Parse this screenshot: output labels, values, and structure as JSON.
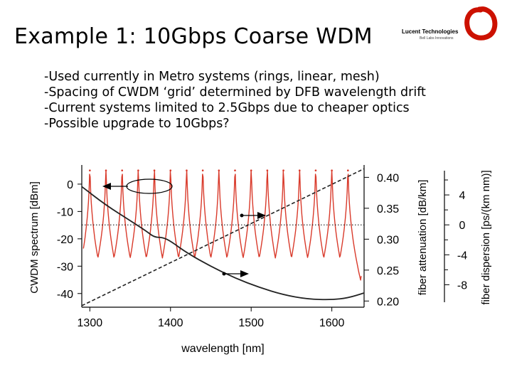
{
  "slide": {
    "title": "Example 1: 10Gbps Coarse WDM",
    "logo_text": "Lucent Technologies",
    "logo_sub": "Bell Labs Innovations"
  },
  "bullets": [
    "-Used currently in Metro systems (rings, linear, mesh)",
    "-Spacing of CWDM ‘grid’ determined by DFB wavelength drift",
    "-Current systems limited to 2.5Gbps due to cheaper optics",
    "-Possible upgrade to 10Gbps?"
  ],
  "chart_data": {
    "type": "line",
    "xlabel": "wavelength [nm]",
    "xlim": [
      1290,
      1640
    ],
    "x_ticks": [
      "1300",
      "1400",
      "1500",
      "1600"
    ],
    "y_left": {
      "label": "CWDM spectrum [dBm]",
      "ylim": [
        -45,
        7
      ],
      "ticks": [
        "0",
        "-10",
        "-20",
        "-30",
        "-40"
      ]
    },
    "y_mid": {
      "label": "fiber attenuation [dB/km]",
      "ylim": [
        0.19,
        0.42
      ],
      "ticks": [
        "0.40",
        "0.35",
        "0.30",
        "0.25",
        "0.20"
      ]
    },
    "y_right": {
      "label": "fiber dispersion [ps/(km nm)]",
      "ylim": [
        -11,
        8
      ],
      "ticks": [
        "4",
        "0",
        "-4",
        "-8"
      ]
    },
    "series": [
      {
        "role": "spectrum",
        "axis": "left",
        "color": "#d93a2b",
        "peaks_x": [
          1300,
          1320,
          1340,
          1360,
          1380,
          1400,
          1420,
          1440,
          1460,
          1480,
          1500,
          1520,
          1540,
          1560,
          1580,
          1600,
          1620
        ],
        "peak_level": 5,
        "noise_floor": -39
      },
      {
        "role": "attenuation",
        "axis": "mid",
        "color": "#222222",
        "x": [
          1290,
          1320,
          1350,
          1370,
          1380,
          1390,
          1400,
          1420,
          1450,
          1480,
          1510,
          1540,
          1570,
          1600,
          1620,
          1640
        ],
        "y": [
          0.385,
          0.355,
          0.33,
          0.313,
          0.303,
          0.303,
          0.297,
          0.278,
          0.256,
          0.237,
          0.222,
          0.21,
          0.203,
          0.202,
          0.205,
          0.213
        ]
      },
      {
        "role": "dispersion",
        "axis": "right",
        "color": "#222222",
        "dashed": true,
        "x": [
          1290,
          1640
        ],
        "y": [
          -10.8,
          7.5
        ]
      }
    ],
    "zero_dispersion_line": {
      "axis": "right",
      "value": 0,
      "dotted": true
    }
  }
}
